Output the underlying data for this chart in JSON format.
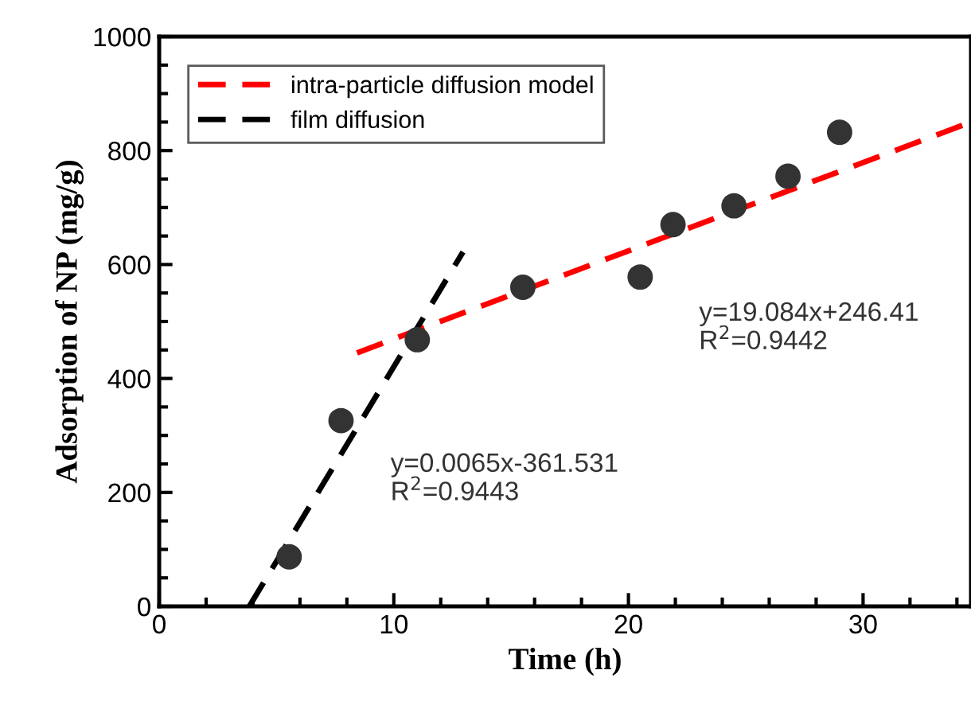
{
  "chart_data": {
    "type": "scatter",
    "xlabel": "Time (h)",
    "ylabel": "Adsorption of NP (mg/g)",
    "xlim": [
      0,
      34.6
    ],
    "ylim": [
      0,
      1000
    ],
    "xticks": [
      0,
      10,
      20,
      30
    ],
    "yticks": [
      0,
      200,
      400,
      600,
      800,
      1000
    ],
    "grid": false,
    "legend": "top left",
    "marker": "circle",
    "series": [
      {
        "color": "#333333",
        "x": [
          5.54,
          7.75,
          11.0,
          15.5,
          20.5,
          21.9,
          24.5,
          26.8,
          29.0
        ],
        "values": [
          87,
          326,
          468,
          560,
          578,
          670,
          703,
          755,
          832
        ]
      },
      {
        "type": "line",
        "name": "intra-particle diffusion model",
        "color": "#ff0000",
        "line_style": "dashed",
        "marker": "none",
        "x": [
          8.43,
          34.6
        ],
        "values": [
          445,
          850
        ]
      },
      {
        "type": "line",
        "name": "film diffusion",
        "color": "#000000",
        "line_style": "dashed",
        "marker": "none",
        "x": [
          3.84,
          12.95
        ],
        "values": [
          0,
          622
        ]
      }
    ],
    "annotations": [
      "y=19.084x+246.41\nR$^{2}$=0.9442",
      "y=0.0065x-361.531\nR$^{2}$=0.9443"
    ]
  }
}
